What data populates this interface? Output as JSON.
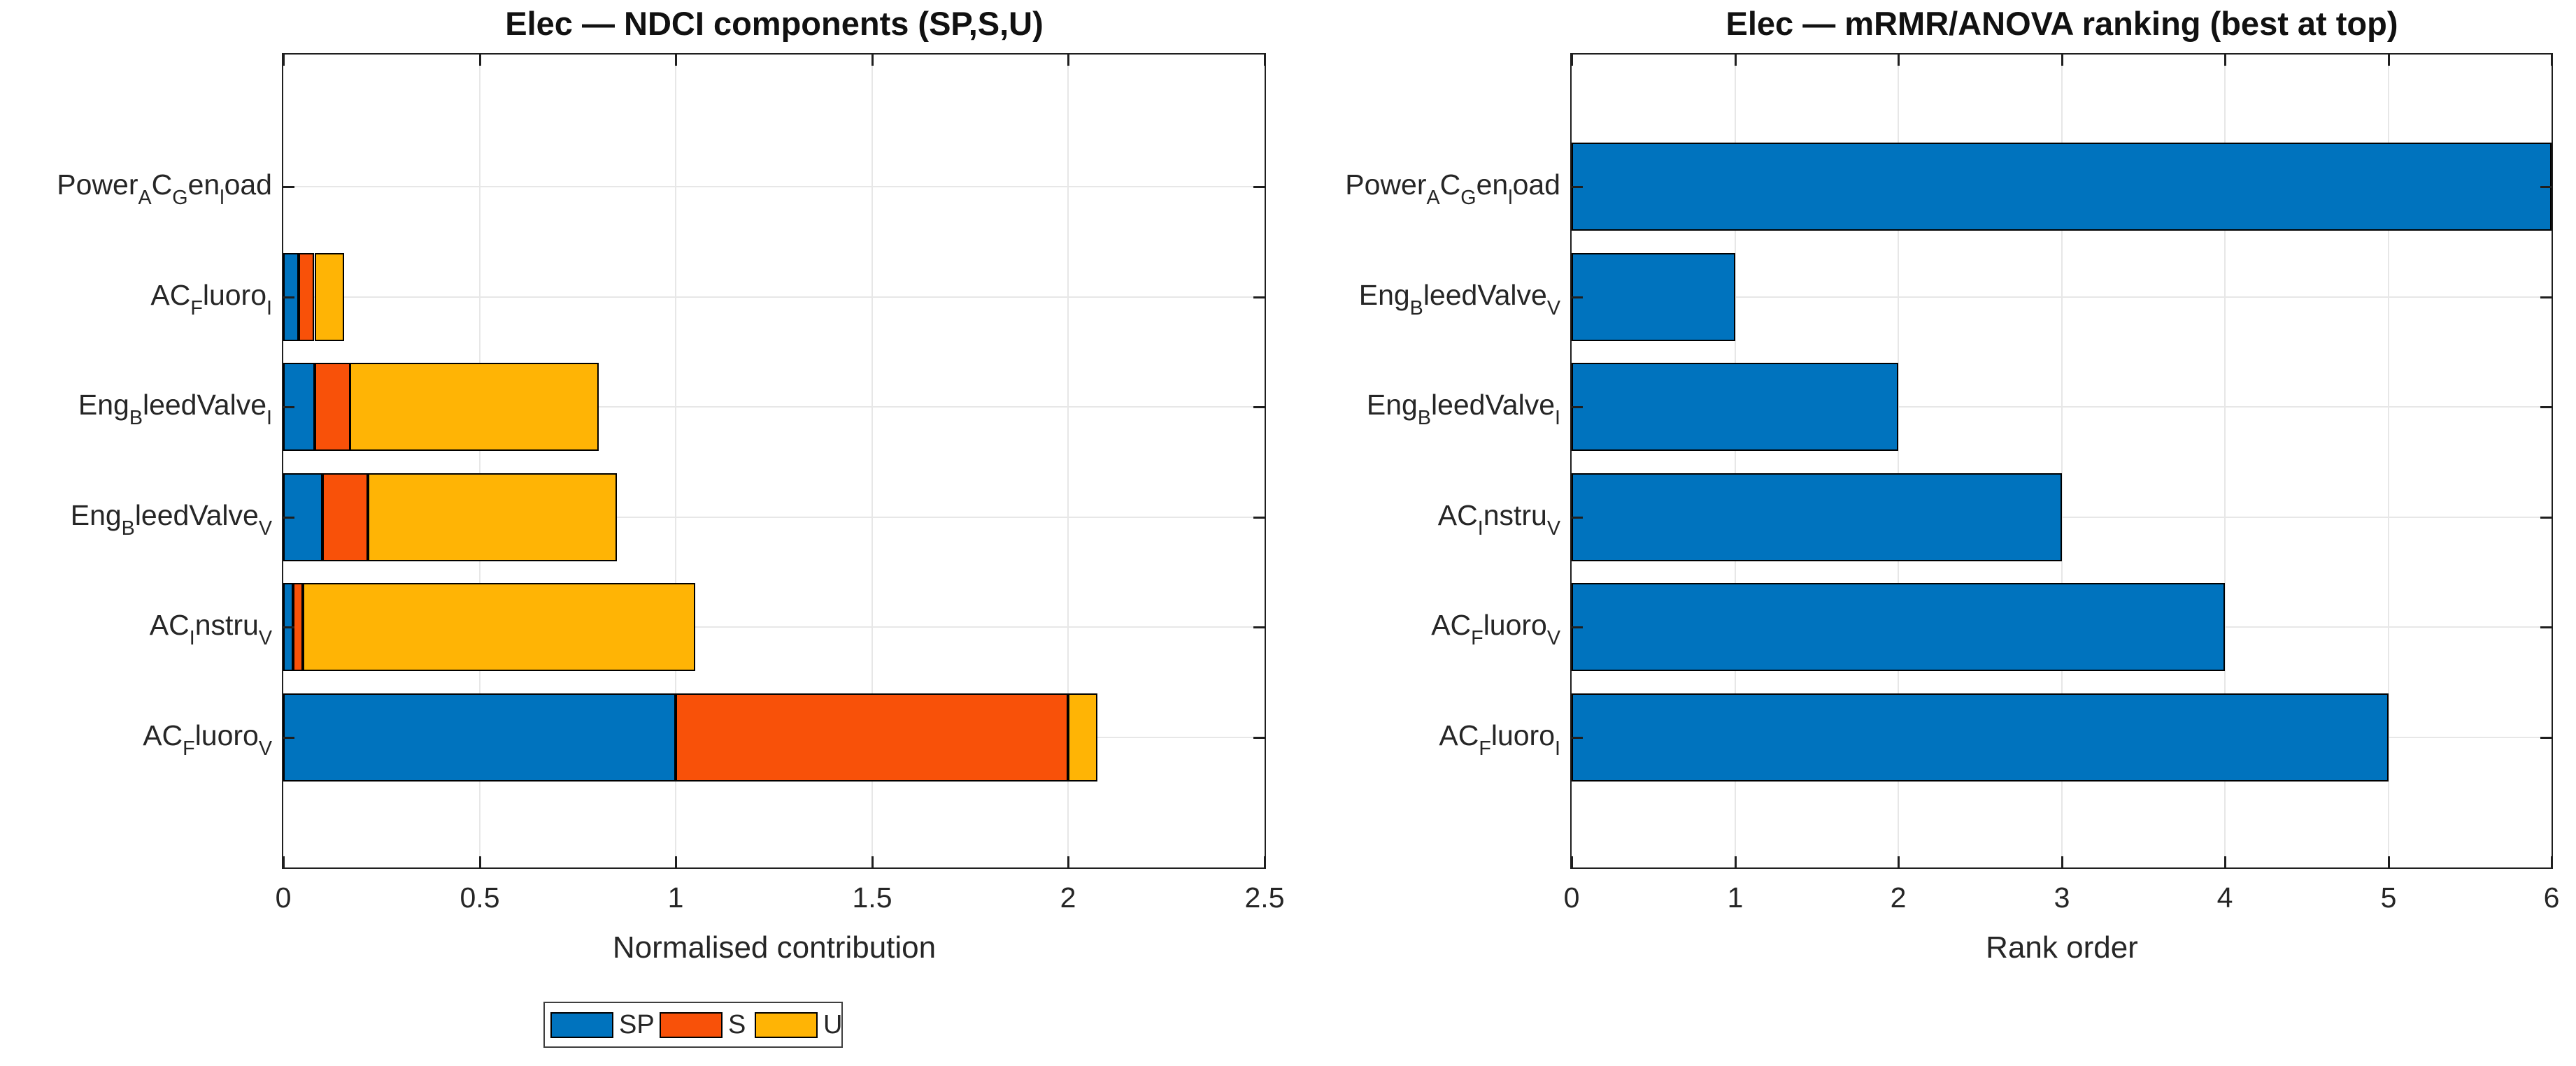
{
  "figure": {
    "background": "#ffffff"
  },
  "colors": {
    "sp": "#0073be",
    "s": "#f85109",
    "u": "#ffb405",
    "bar_edge": "#000000",
    "axis_line": "#1f1f1f",
    "grid_line": "#e7e7e7",
    "text": "#262626",
    "title_text": "#111111",
    "legend_border": "#3f3f3f"
  },
  "chart_data": [
    {
      "type": "bar",
      "orientation": "horizontal",
      "stacked": true,
      "title": "Elec — NDCI components (SP,S,U)",
      "xlabel": "Normalised contribution",
      "xlim": [
        0,
        2.5
      ],
      "xticks": [
        0,
        0.5,
        1,
        1.5,
        2,
        2.5
      ],
      "xtick_labels": [
        "0",
        "0.5",
        "1",
        "1.5",
        "2",
        "2.5"
      ],
      "grid": true,
      "legend": {
        "position": "below",
        "labels": [
          "SP",
          "S",
          "U"
        ],
        "color_keys": [
          "sp",
          "s",
          "u"
        ]
      },
      "categories": [
        {
          "id": "Power_AC_Gen_load",
          "parts": [
            {
              "t": "Power"
            },
            {
              "t": "A",
              "sub": true
            },
            {
              "t": "C"
            },
            {
              "t": "G",
              "sub": true
            },
            {
              "t": "en"
            },
            {
              "t": "l",
              "sub": true
            },
            {
              "t": "oad"
            }
          ]
        },
        {
          "id": "AC_Fluoro_I",
          "parts": [
            {
              "t": "AC"
            },
            {
              "t": "F",
              "sub": true
            },
            {
              "t": "luoro"
            },
            {
              "t": "I",
              "sub": true
            }
          ]
        },
        {
          "id": "Eng_BleedValve_I",
          "parts": [
            {
              "t": "Eng"
            },
            {
              "t": "B",
              "sub": true
            },
            {
              "t": "leedValve"
            },
            {
              "t": "I",
              "sub": true
            }
          ]
        },
        {
          "id": "Eng_BleedValve_V",
          "parts": [
            {
              "t": "Eng"
            },
            {
              "t": "B",
              "sub": true
            },
            {
              "t": "leedValve"
            },
            {
              "t": "V",
              "sub": true
            }
          ]
        },
        {
          "id": "AC_Instru_V",
          "parts": [
            {
              "t": "AC"
            },
            {
              "t": "I",
              "sub": true
            },
            {
              "t": "nstru"
            },
            {
              "t": "V",
              "sub": true
            }
          ]
        },
        {
          "id": "AC_Fluoro_V",
          "parts": [
            {
              "t": "AC"
            },
            {
              "t": "F",
              "sub": true
            },
            {
              "t": "luoro"
            },
            {
              "t": "V",
              "sub": true
            }
          ]
        }
      ],
      "series": [
        {
          "name": "SP",
          "color_key": "sp",
          "values": [
            0,
            0.04,
            0.08,
            0.1,
            0.025,
            1.0
          ]
        },
        {
          "name": "S",
          "color_key": "s",
          "values": [
            0,
            0.04,
            0.09,
            0.115,
            0.025,
            1.0
          ]
        },
        {
          "name": "U",
          "color_key": "u",
          "values": [
            0,
            0.075,
            0.635,
            0.635,
            1.0,
            0.075
          ]
        }
      ]
    },
    {
      "type": "bar",
      "orientation": "horizontal",
      "stacked": false,
      "title": "Elec — mRMR/ANOVA ranking (best at top)",
      "xlabel": "Rank order",
      "xlim": [
        0,
        6
      ],
      "xticks": [
        0,
        1,
        2,
        3,
        4,
        5,
        6
      ],
      "xtick_labels": [
        "0",
        "1",
        "2",
        "3",
        "4",
        "5",
        "6"
      ],
      "grid": true,
      "categories": [
        {
          "id": "Power_AC_Gen_load",
          "parts": [
            {
              "t": "Power"
            },
            {
              "t": "A",
              "sub": true
            },
            {
              "t": "C"
            },
            {
              "t": "G",
              "sub": true
            },
            {
              "t": "en"
            },
            {
              "t": "l",
              "sub": true
            },
            {
              "t": "oad"
            }
          ]
        },
        {
          "id": "Eng_BleedValve_V",
          "parts": [
            {
              "t": "Eng"
            },
            {
              "t": "B",
              "sub": true
            },
            {
              "t": "leedValve"
            },
            {
              "t": "V",
              "sub": true
            }
          ]
        },
        {
          "id": "Eng_BleedValve_I",
          "parts": [
            {
              "t": "Eng"
            },
            {
              "t": "B",
              "sub": true
            },
            {
              "t": "leedValve"
            },
            {
              "t": "I",
              "sub": true
            }
          ]
        },
        {
          "id": "AC_Instru_V",
          "parts": [
            {
              "t": "AC"
            },
            {
              "t": "I",
              "sub": true
            },
            {
              "t": "nstru"
            },
            {
              "t": "V",
              "sub": true
            }
          ]
        },
        {
          "id": "AC_Fluoro_V",
          "parts": [
            {
              "t": "AC"
            },
            {
              "t": "F",
              "sub": true
            },
            {
              "t": "luoro"
            },
            {
              "t": "V",
              "sub": true
            }
          ]
        },
        {
          "id": "AC_Fluoro_I",
          "parts": [
            {
              "t": "AC"
            },
            {
              "t": "F",
              "sub": true
            },
            {
              "t": "luoro"
            },
            {
              "t": "I",
              "sub": true
            }
          ]
        }
      ],
      "series": [
        {
          "name": "rank",
          "color_key": "sp",
          "values": [
            6,
            1,
            2,
            3,
            4,
            5
          ]
        }
      ]
    }
  ]
}
